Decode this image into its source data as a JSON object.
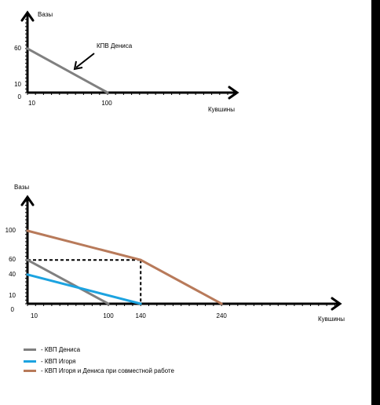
{
  "chart_data": [
    {
      "type": "line",
      "title": "",
      "xlabel": "Кувшины",
      "ylabel": "Вазы",
      "x_ticks": [
        "10",
        "100"
      ],
      "y_ticks": [
        "60",
        "10",
        "0"
      ],
      "annotation": "КПВ Дениса",
      "series": [
        {
          "name": "КПВ Дениса",
          "color": "#808080",
          "points": [
            [
              0,
              60
            ],
            [
              100,
              0
            ]
          ]
        }
      ]
    },
    {
      "type": "line",
      "title": "",
      "xlabel": "Кувшины",
      "ylabel": "Вазы",
      "x_ticks": [
        "10",
        "100",
        "140",
        "240"
      ],
      "y_ticks": [
        "100",
        "60",
        "40",
        "10",
        "0"
      ],
      "series": [
        {
          "name": "- КВП Дениса",
          "color": "#808080",
          "points": [
            [
              0,
              60
            ],
            [
              100,
              0
            ]
          ]
        },
        {
          "name": "- КВП Игоря",
          "color": "#1ca3e0",
          "points": [
            [
              0,
              40
            ],
            [
              140,
              0
            ]
          ]
        },
        {
          "name": "- КВП Игоря и Дениса при совместной работе",
          "color": "#b87a5a",
          "points": [
            [
              0,
              100
            ],
            [
              140,
              60
            ],
            [
              240,
              0
            ]
          ]
        }
      ],
      "guides": [
        [
          140,
          60
        ]
      ]
    }
  ]
}
